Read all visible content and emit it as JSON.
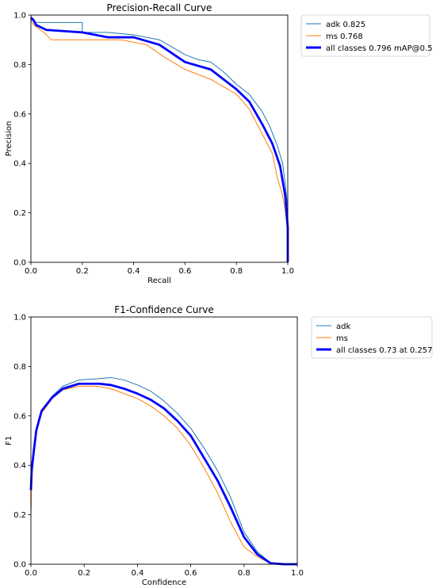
{
  "chart_data": [
    {
      "type": "line",
      "title": "Precision-Recall Curve",
      "xlabel": "Recall",
      "ylabel": "Precision",
      "xlim": [
        0,
        1
      ],
      "ylim": [
        0,
        1
      ],
      "xticks": [
        "0.0",
        "0.2",
        "0.4",
        "0.6",
        "0.8",
        "1.0"
      ],
      "yticks": [
        "0.0",
        "0.2",
        "0.4",
        "0.6",
        "0.8",
        "1.0"
      ],
      "legend_position": "outside-right-top",
      "series": [
        {
          "name": "adk 0.825",
          "color": "#1f77b4",
          "style": "thin-step",
          "points": [
            [
              0,
              0.98
            ],
            [
              0.01,
              0.98
            ],
            [
              0.02,
              0.97
            ],
            [
              0.2,
              0.97
            ],
            [
              0.2,
              0.93
            ],
            [
              0.3,
              0.93
            ],
            [
              0.4,
              0.92
            ],
            [
              0.5,
              0.9
            ],
            [
              0.55,
              0.87
            ],
            [
              0.6,
              0.84
            ],
            [
              0.65,
              0.82
            ],
            [
              0.7,
              0.81
            ],
            [
              0.75,
              0.77
            ],
            [
              0.8,
              0.72
            ],
            [
              0.85,
              0.68
            ],
            [
              0.9,
              0.61
            ],
            [
              0.93,
              0.55
            ],
            [
              0.96,
              0.47
            ],
            [
              0.98,
              0.4
            ],
            [
              0.99,
              0.32
            ],
            [
              1.0,
              0.22
            ],
            [
              1.0,
              0.0
            ]
          ]
        },
        {
          "name": "ms 0.768",
          "color": "#ff7f0e",
          "style": "thin-step",
          "points": [
            [
              0,
              0.98
            ],
            [
              0.01,
              0.96
            ],
            [
              0.05,
              0.93
            ],
            [
              0.08,
              0.9
            ],
            [
              0.25,
              0.9
            ],
            [
              0.35,
              0.9
            ],
            [
              0.45,
              0.88
            ],
            [
              0.52,
              0.83
            ],
            [
              0.6,
              0.78
            ],
            [
              0.7,
              0.74
            ],
            [
              0.8,
              0.68
            ],
            [
              0.85,
              0.62
            ],
            [
              0.9,
              0.52
            ],
            [
              0.94,
              0.44
            ],
            [
              0.96,
              0.34
            ],
            [
              0.98,
              0.27
            ],
            [
              0.99,
              0.21
            ],
            [
              1.0,
              0.12
            ],
            [
              1.0,
              0.0
            ]
          ]
        },
        {
          "name": "all classes 0.796 mAP@0.5",
          "color": "#0000ff",
          "style": "thick",
          "points": [
            [
              0,
              0.99
            ],
            [
              0.01,
              0.98
            ],
            [
              0.02,
              0.96
            ],
            [
              0.06,
              0.94
            ],
            [
              0.2,
              0.93
            ],
            [
              0.3,
              0.91
            ],
            [
              0.4,
              0.91
            ],
            [
              0.5,
              0.88
            ],
            [
              0.6,
              0.81
            ],
            [
              0.7,
              0.78
            ],
            [
              0.8,
              0.7
            ],
            [
              0.85,
              0.65
            ],
            [
              0.9,
              0.56
            ],
            [
              0.94,
              0.48
            ],
            [
              0.97,
              0.39
            ],
            [
              0.99,
              0.27
            ],
            [
              1.0,
              0.14
            ],
            [
              1.0,
              0.0
            ]
          ]
        }
      ]
    },
    {
      "type": "line",
      "title": "F1-Confidence Curve",
      "xlabel": "Confidence",
      "ylabel": "F1",
      "xlim": [
        0,
        1
      ],
      "ylim": [
        0,
        1
      ],
      "xticks": [
        "0.0",
        "0.2",
        "0.4",
        "0.6",
        "0.8",
        "1.0"
      ],
      "yticks": [
        "0.0",
        "0.2",
        "0.4",
        "0.6",
        "0.8",
        "1.0"
      ],
      "legend_position": "outside-right-top",
      "series": [
        {
          "name": "adk",
          "color": "#1f77b4",
          "style": "thin",
          "points": [
            [
              0,
              0.21
            ],
            [
              0.003,
              0.38
            ],
            [
              0.01,
              0.45
            ],
            [
              0.02,
              0.54
            ],
            [
              0.04,
              0.62
            ],
            [
              0.08,
              0.68
            ],
            [
              0.12,
              0.72
            ],
            [
              0.18,
              0.745
            ],
            [
              0.25,
              0.75
            ],
            [
              0.3,
              0.755
            ],
            [
              0.35,
              0.745
            ],
            [
              0.4,
              0.725
            ],
            [
              0.45,
              0.7
            ],
            [
              0.5,
              0.66
            ],
            [
              0.55,
              0.61
            ],
            [
              0.6,
              0.55
            ],
            [
              0.65,
              0.47
            ],
            [
              0.7,
              0.38
            ],
            [
              0.75,
              0.27
            ],
            [
              0.8,
              0.13
            ],
            [
              0.85,
              0.05
            ],
            [
              0.9,
              0.005
            ],
            [
              0.95,
              0.0
            ],
            [
              1.0,
              0.0
            ]
          ]
        },
        {
          "name": "ms",
          "color": "#ff7f0e",
          "style": "thin",
          "points": [
            [
              0,
              0.2
            ],
            [
              0.003,
              0.37
            ],
            [
              0.01,
              0.44
            ],
            [
              0.02,
              0.53
            ],
            [
              0.04,
              0.61
            ],
            [
              0.08,
              0.67
            ],
            [
              0.12,
              0.705
            ],
            [
              0.18,
              0.72
            ],
            [
              0.25,
              0.72
            ],
            [
              0.3,
              0.71
            ],
            [
              0.35,
              0.69
            ],
            [
              0.4,
              0.67
            ],
            [
              0.45,
              0.64
            ],
            [
              0.5,
              0.6
            ],
            [
              0.55,
              0.55
            ],
            [
              0.6,
              0.48
            ],
            [
              0.65,
              0.39
            ],
            [
              0.7,
              0.29
            ],
            [
              0.75,
              0.17
            ],
            [
              0.8,
              0.07
            ],
            [
              0.85,
              0.03
            ],
            [
              0.9,
              0.003
            ],
            [
              0.95,
              0.0
            ],
            [
              1.0,
              0.0
            ]
          ]
        },
        {
          "name": "all classes 0.73 at 0.257",
          "color": "#0000ff",
          "style": "thick",
          "points": [
            [
              0,
              0.3
            ],
            [
              0.003,
              0.38
            ],
            [
              0.01,
              0.45
            ],
            [
              0.02,
              0.54
            ],
            [
              0.04,
              0.62
            ],
            [
              0.08,
              0.675
            ],
            [
              0.12,
              0.71
            ],
            [
              0.18,
              0.73
            ],
            [
              0.257,
              0.73
            ],
            [
              0.3,
              0.725
            ],
            [
              0.35,
              0.71
            ],
            [
              0.4,
              0.69
            ],
            [
              0.45,
              0.665
            ],
            [
              0.5,
              0.63
            ],
            [
              0.55,
              0.58
            ],
            [
              0.6,
              0.52
            ],
            [
              0.65,
              0.43
            ],
            [
              0.7,
              0.34
            ],
            [
              0.75,
              0.23
            ],
            [
              0.8,
              0.11
            ],
            [
              0.85,
              0.04
            ],
            [
              0.9,
              0.004
            ],
            [
              0.95,
              0.0
            ],
            [
              1.0,
              0.0
            ]
          ]
        }
      ]
    }
  ]
}
